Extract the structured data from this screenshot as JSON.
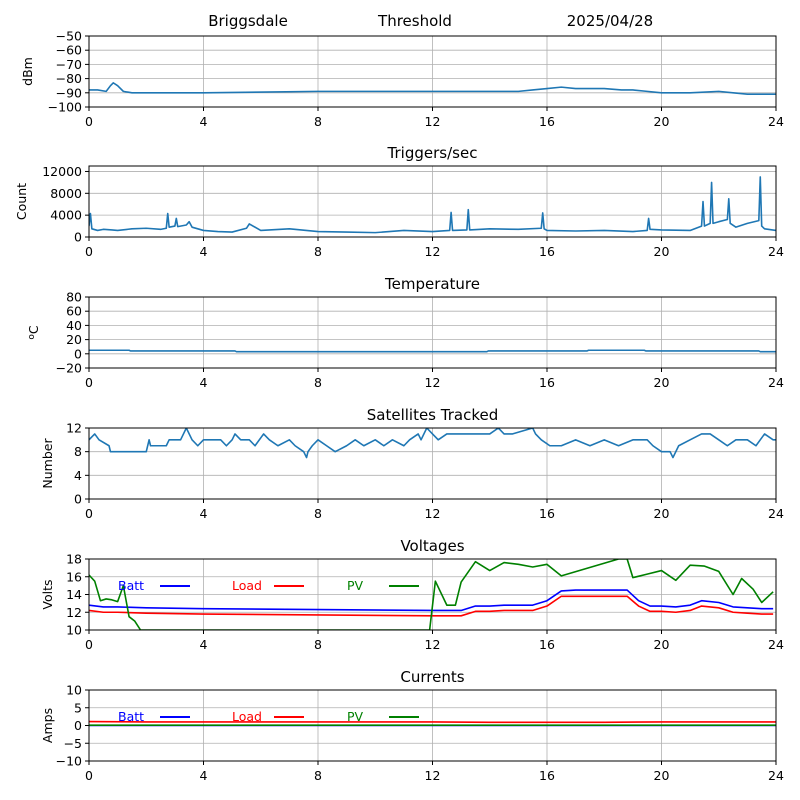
{
  "header": {
    "station": "Briggsdale",
    "label": "Threshold",
    "date": "2025/04/28"
  },
  "colors": {
    "series_default": "#1f77b4",
    "batt": "#0000ff",
    "load": "#ff0000",
    "pv": "#008000",
    "grid": "#b0b0b0",
    "axis": "#000000"
  },
  "chart_data": [
    {
      "type": "line",
      "title": "",
      "ylabel": "dBm",
      "xlim": [
        0,
        24
      ],
      "ylim": [
        -100,
        -50
      ],
      "xticks": [
        "0",
        "4",
        "8",
        "12",
        "16",
        "20",
        "24"
      ],
      "yticks": [
        "−100",
        "−90",
        "−80",
        "−70",
        "−60",
        "−50"
      ],
      "grid": true,
      "series": [
        {
          "x": [
            0,
            0.3,
            0.6,
            0.75,
            0.85,
            1.0,
            1.2,
            1.5,
            2,
            4,
            8,
            12,
            14,
            15,
            15.5,
            16,
            16.5,
            17,
            18,
            18.6,
            19,
            19.5,
            20,
            21,
            22,
            22.5,
            23,
            24
          ],
          "y": [
            -88,
            -88,
            -89,
            -85,
            -83,
            -85,
            -89,
            -90,
            -90,
            -90,
            -89,
            -89,
            -89,
            -89,
            -88,
            -87,
            -86,
            -87,
            -87,
            -88,
            -88,
            -89,
            -90,
            -90,
            -89,
            -90,
            -91,
            -91
          ]
        }
      ]
    },
    {
      "type": "line",
      "title": "Triggers/sec",
      "ylabel": "Count",
      "xlim": [
        0,
        24
      ],
      "ylim": [
        0,
        13000
      ],
      "xticks": [
        "0",
        "4",
        "8",
        "12",
        "16",
        "20",
        "24"
      ],
      "yticks": [
        "0",
        "4000",
        "8000",
        "12000"
      ],
      "grid": true,
      "series": [
        {
          "x": [
            0,
            0.05,
            0.1,
            0.3,
            0.5,
            0.8,
            1,
            1.5,
            2,
            2.5,
            2.7,
            2.75,
            2.8,
            3,
            3.05,
            3.1,
            3.4,
            3.5,
            3.6,
            4,
            4.5,
            5,
            5.5,
            5.6,
            6,
            7,
            8,
            9,
            10,
            11,
            12,
            12.6,
            12.65,
            12.7,
            13.2,
            13.25,
            13.3,
            14,
            15,
            15.8,
            15.85,
            15.9,
            16,
            17,
            18,
            19,
            19.5,
            19.55,
            19.6,
            20,
            21,
            21.4,
            21.45,
            21.5,
            21.7,
            21.75,
            21.8,
            22,
            22.3,
            22.35,
            22.4,
            22.6,
            23,
            23.4,
            23.45,
            23.5,
            23.6,
            24
          ],
          "y": [
            2000,
            4300,
            1500,
            1200,
            1400,
            1300,
            1200,
            1500,
            1600,
            1400,
            1600,
            4300,
            1800,
            2000,
            3400,
            1900,
            2200,
            2800,
            1800,
            1200,
            1000,
            900,
            1600,
            2400,
            1200,
            1500,
            1000,
            900,
            800,
            1200,
            1000,
            1200,
            4500,
            1200,
            1300,
            5000,
            1300,
            1500,
            1400,
            1600,
            4400,
            1500,
            1200,
            1100,
            1200,
            1000,
            1200,
            3400,
            1400,
            1300,
            1200,
            2000,
            6500,
            2000,
            2500,
            10000,
            2500,
            2800,
            3200,
            7000,
            2500,
            1800,
            2500,
            3000,
            11000,
            2000,
            1500,
            1200
          ]
        }
      ]
    },
    {
      "type": "line",
      "title": "Temperature",
      "ylabel": "oC",
      "xlim": [
        0,
        24
      ],
      "ylim": [
        -20,
        80
      ],
      "xticks": [
        "0",
        "4",
        "8",
        "12",
        "16",
        "20",
        "24"
      ],
      "yticks": [
        "−20",
        "0",
        "20",
        "40",
        "60",
        "80"
      ],
      "grid": true,
      "series": [
        {
          "x": [
            0,
            1.4,
            1.45,
            5.1,
            5.15,
            13.9,
            13.95,
            17.4,
            17.45,
            19.4,
            19.45,
            23.4,
            23.45,
            24
          ],
          "y": [
            5,
            5,
            4,
            4,
            3,
            3,
            4,
            4,
            5,
            5,
            4,
            4,
            3,
            3
          ]
        }
      ]
    },
    {
      "type": "line",
      "title": "Satellites Tracked",
      "ylabel": "Number",
      "xlim": [
        0,
        24
      ],
      "ylim": [
        0,
        12
      ],
      "xticks": [
        "0",
        "4",
        "8",
        "12",
        "16",
        "20",
        "24"
      ],
      "yticks": [
        "0",
        "4",
        "8",
        "12"
      ],
      "grid": true,
      "series": [
        {
          "x": [
            0,
            0.2,
            0.35,
            0.7,
            0.75,
            1.1,
            1.2,
            1.5,
            2,
            2.1,
            2.15,
            2.6,
            2.7,
            2.8,
            3.2,
            3.3,
            3.4,
            3.6,
            3.8,
            4,
            4.2,
            4.6,
            4.8,
            5,
            5.1,
            5.3,
            5.6,
            5.8,
            6.1,
            6.3,
            6.6,
            7,
            7.2,
            7.5,
            7.6,
            7.65,
            7.8,
            8,
            8.3,
            8.6,
            9,
            9.3,
            9.6,
            10,
            10.3,
            10.6,
            11,
            11.2,
            11.5,
            11.6,
            11.8,
            12,
            12.2,
            12.5,
            13,
            14,
            14.3,
            14.5,
            14.8,
            15.5,
            15.6,
            15.8,
            16.1,
            16.5,
            17,
            17.5,
            18,
            18.5,
            19,
            19.5,
            19.7,
            20,
            20.3,
            20.4,
            20.6,
            21,
            21.4,
            21.7,
            22,
            22.3,
            22.6,
            23,
            23.3,
            23.6,
            23.9,
            24
          ],
          "y": [
            10,
            11,
            10,
            9,
            8,
            8,
            8,
            8,
            8,
            10,
            9,
            9,
            9,
            10,
            10,
            11,
            12,
            10,
            9,
            10,
            10,
            10,
            9,
            10,
            11,
            10,
            10,
            9,
            11,
            10,
            9,
            10,
            9,
            8,
            7,
            8,
            9,
            10,
            9,
            8,
            9,
            10,
            9,
            10,
            9,
            10,
            9,
            10,
            11,
            10,
            12,
            11,
            10,
            11,
            11,
            11,
            12,
            11,
            11,
            12,
            11,
            10,
            9,
            9,
            10,
            9,
            10,
            9,
            10,
            10,
            9,
            8,
            8,
            7,
            9,
            10,
            11,
            11,
            10,
            9,
            10,
            10,
            9,
            11,
            10,
            10
          ]
        }
      ]
    },
    {
      "type": "line",
      "title": "Voltages",
      "ylabel": "Volts",
      "xlim": [
        0,
        24
      ],
      "ylim": [
        10,
        18
      ],
      "xticks": [
        "0",
        "4",
        "8",
        "12",
        "16",
        "20",
        "24"
      ],
      "yticks": [
        "10",
        "12",
        "14",
        "16",
        "18"
      ],
      "grid": true,
      "legend": "top-left",
      "series": [
        {
          "name": "Batt",
          "x": [
            0,
            0.5,
            1,
            2,
            4,
            8,
            12,
            13,
            13.5,
            14,
            14.5,
            15,
            15.5,
            16,
            16.5,
            17,
            18,
            18.8,
            19.2,
            19.6,
            20,
            20.5,
            21,
            21.4,
            22,
            22.5,
            23,
            23.5,
            23.9
          ],
          "y": [
            12.8,
            12.6,
            12.6,
            12.5,
            12.4,
            12.3,
            12.2,
            12.2,
            12.7,
            12.7,
            12.8,
            12.8,
            12.8,
            13.3,
            14.4,
            14.5,
            14.5,
            14.5,
            13.3,
            12.7,
            12.7,
            12.6,
            12.8,
            13.3,
            13.1,
            12.6,
            12.5,
            12.4,
            12.4
          ]
        },
        {
          "name": "Load",
          "x": [
            0,
            0.5,
            1,
            2,
            4,
            8,
            12,
            13,
            13.5,
            14,
            14.5,
            15,
            15.5,
            16,
            16.5,
            17,
            18,
            18.8,
            19.2,
            19.6,
            20,
            20.5,
            21,
            21.4,
            22,
            22.5,
            23,
            23.5,
            23.9
          ],
          "y": [
            12.2,
            12.0,
            12.0,
            11.9,
            11.8,
            11.7,
            11.6,
            11.6,
            12.1,
            12.1,
            12.2,
            12.2,
            12.2,
            12.7,
            13.8,
            13.8,
            13.8,
            13.8,
            12.7,
            12.1,
            12.1,
            12.0,
            12.2,
            12.7,
            12.5,
            12.0,
            11.9,
            11.8,
            11.8
          ]
        },
        {
          "name": "PV",
          "x": [
            0,
            0.2,
            0.4,
            0.6,
            0.8,
            1.0,
            1.2,
            1.4,
            1.6,
            1.8,
            11.9,
            12.1,
            12.5,
            12.8,
            13.0,
            13.5,
            14.0,
            14.5,
            15.0,
            15.5,
            16.0,
            16.5,
            18.5,
            18.8,
            19.0,
            19.5,
            20.0,
            20.5,
            21.0,
            21.5,
            22.0,
            22.5,
            22.8,
            23.2,
            23.5,
            23.9
          ],
          "y": [
            16.2,
            15.5,
            13.3,
            13.5,
            13.4,
            13.2,
            15.0,
            11.5,
            11.0,
            10.0,
            10.0,
            15.5,
            12.8,
            12.8,
            15.4,
            17.7,
            16.7,
            17.6,
            17.4,
            17.1,
            17.4,
            16.1,
            18.0,
            18.0,
            15.9,
            16.3,
            16.7,
            15.6,
            17.3,
            17.2,
            16.6,
            14.0,
            15.8,
            14.6,
            13.1,
            14.3
          ]
        }
      ]
    },
    {
      "type": "line",
      "title": "Currents",
      "ylabel": "Amps",
      "xlim": [
        0,
        24
      ],
      "ylim": [
        -10,
        10
      ],
      "xticks": [
        "0",
        "4",
        "8",
        "12",
        "16",
        "20",
        "24"
      ],
      "yticks": [
        "−10",
        "−5",
        "0",
        "5",
        "10"
      ],
      "grid": true,
      "legend": "top-left",
      "series": [
        {
          "name": "Batt",
          "x": [
            0,
            24
          ],
          "y": [
            0,
            0
          ]
        },
        {
          "name": "Load",
          "x": [
            0,
            2,
            8,
            12,
            14,
            18,
            20,
            24
          ],
          "y": [
            1.1,
            1.0,
            1.0,
            1.0,
            0.9,
            0.9,
            1.0,
            1.0
          ]
        },
        {
          "name": "PV",
          "x": [
            0,
            24
          ],
          "y": [
            0.1,
            0.1
          ]
        }
      ]
    }
  ]
}
